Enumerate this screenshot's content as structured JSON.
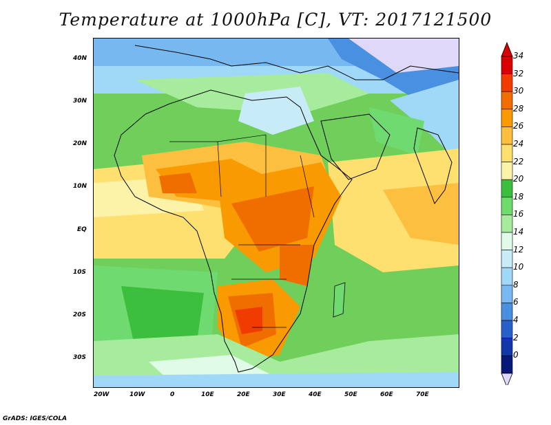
{
  "title": "Temperature at 1000hPa [C], VT: 2017121500",
  "credit": "GrADS: IGES/COLA",
  "lon_labels": [
    "20W",
    "10W",
    "0",
    "10E",
    "20E",
    "30E",
    "40E",
    "50E",
    "60E",
    "70E"
  ],
  "lat_labels": [
    "40N",
    "30N",
    "20N",
    "10N",
    "EQ",
    "10S",
    "20S",
    "30S"
  ],
  "colorbar": {
    "labels": [
      "34",
      "32",
      "30",
      "28",
      "26",
      "24",
      "22",
      "20",
      "18",
      "16",
      "14",
      "12",
      "10",
      "8",
      "6",
      "4",
      "2",
      "0"
    ],
    "colors": [
      "#d80000",
      "#f03c00",
      "#f06e00",
      "#f89a00",
      "#fdbf40",
      "#fde070",
      "#fdf3a8",
      "#3cbf3c",
      "#6fda6f",
      "#a6ec9c",
      "#e0fae8",
      "#c7ecf8",
      "#a0d8f8",
      "#78b8f0",
      "#4a90e0",
      "#2660c8",
      "#1038a8",
      "#081878"
    ],
    "over_color": "#d80000",
    "under_color": "#e0d8f8"
  }
}
